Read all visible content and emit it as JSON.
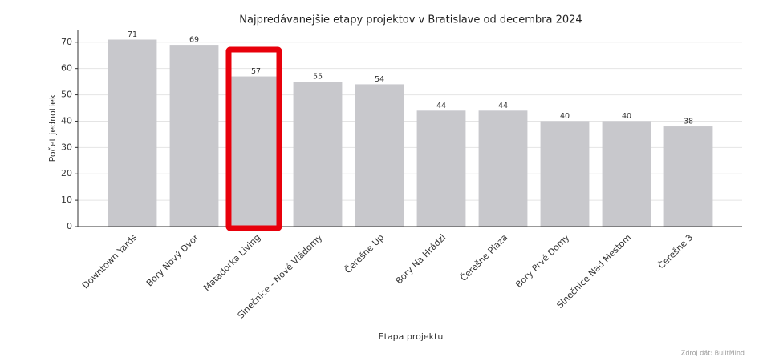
{
  "chart_data": {
    "type": "bar",
    "title": "Najpredávanejšie etapy projektov v Bratislave od decembra 2024",
    "x_label": "Etapa projektu",
    "y_label": "Počet jednotiek",
    "source": "Zdroj dát: BuiltMind",
    "categories": [
      "Downtown Yards",
      "Bory Nový Dvor",
      "Matadorka Living",
      "Slnečnice - Nové Vlādomy",
      "Čerešne Up",
      "Bory Na Hrádzi",
      "Čerešne Plaza",
      "Bory Prvé Domy",
      "Slnečnice Nad Mestom",
      "Čerešne 3"
    ],
    "values": [
      71,
      69,
      57,
      55,
      54,
      44,
      44,
      40,
      40,
      38
    ],
    "color": "#c8c8cc",
    "ylim": [
      0,
      74.5
    ],
    "yticks": [
      0,
      10,
      20,
      30,
      40,
      50,
      60,
      70
    ],
    "grid": true
  }
}
